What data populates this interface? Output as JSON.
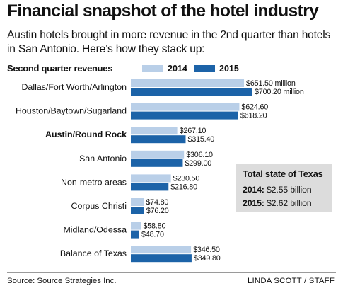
{
  "header": {
    "title": "Financial snapshot of the hotel industry",
    "subtitle": "Austin hotels brought in more revenue in the 2nd quarter than hotels in San Antonio. Here’s how they stack up:"
  },
  "chart_data": {
    "type": "bar",
    "orientation": "horizontal",
    "title": "Second quarter revenues",
    "unit": "million",
    "categories": [
      "Dallas/Fort Worth/Arlington",
      "Houston/Baytown/Sugarland",
      "Austin/Round Rock",
      "San Antonio",
      "Non-metro areas",
      "Corpus Christi",
      "Midland/Odessa",
      "Balance of Texas"
    ],
    "highlight_category": "Austin/Round Rock",
    "series": [
      {
        "name": "2014",
        "color": "#b9cfe8",
        "values": [
          651.5,
          624.6,
          267.1,
          306.1,
          230.5,
          74.8,
          58.8,
          346.5
        ],
        "labels": [
          "$651.50 million",
          "$624.60",
          "$267.10",
          "$306.10",
          "$230.50",
          "$74.80",
          "$58.80",
          "$346.50"
        ]
      },
      {
        "name": "2015",
        "color": "#1c63a8",
        "values": [
          700.2,
          618.2,
          315.4,
          299.0,
          216.8,
          76.2,
          48.7,
          349.8
        ],
        "labels": [
          "$700.20 million",
          "$618.20",
          "$315.40",
          "$299.00",
          "$216.80",
          "$76.20",
          "$48.70",
          "$349.80"
        ]
      }
    ],
    "xlim": [
      0,
      700.2
    ],
    "grid": false,
    "legend_position": "top"
  },
  "totals": {
    "title": "Total state of Texas",
    "lines": [
      {
        "label": "2014:",
        "value": "$2.55 billion"
      },
      {
        "label": "2015:",
        "value": "$2.62 billion"
      }
    ]
  },
  "footer": {
    "source": "Source: Source Strategies Inc.",
    "credit": "LINDA SCOTT / STAFF"
  }
}
